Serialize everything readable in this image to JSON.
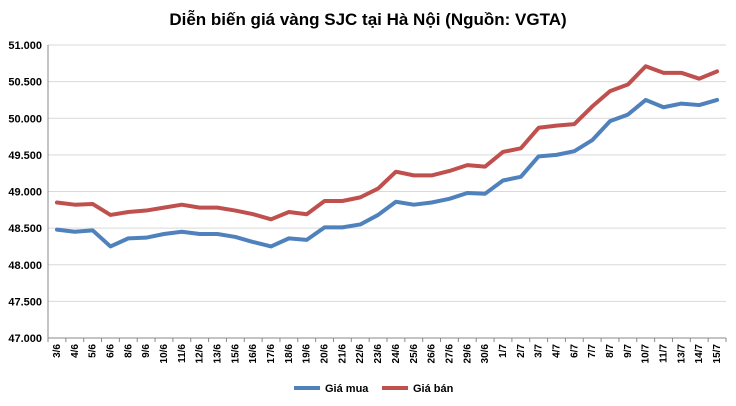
{
  "chart_data": {
    "type": "line",
    "title": "Diễn biến giá vàng SJC tại Hà Nội (Nguồn: VGTA)",
    "xlabel": "",
    "ylabel": "",
    "ylim": [
      47000,
      51000
    ],
    "ytick_step": 500,
    "ytick_labels": [
      "47.000",
      "47.500",
      "48.000",
      "48.500",
      "49.000",
      "49.500",
      "50.000",
      "50.500",
      "51.000"
    ],
    "grid": "horizontal",
    "legend_position": "bottom",
    "categories": [
      "3/6",
      "4/6",
      "5/6",
      "6/6",
      "8/6",
      "9/6",
      "10/6",
      "11/6",
      "12/6",
      "13/6",
      "15/6",
      "16/6",
      "17/6",
      "18/6",
      "19/6",
      "20/6",
      "21/6",
      "22/6",
      "23/6",
      "24/6",
      "25/6",
      "26/6",
      "27/6",
      "29/6",
      "30/6",
      "1/7",
      "2/7",
      "3/7",
      "4/7",
      "6/7",
      "7/7",
      "8/7",
      "9/7",
      "10/7",
      "11/7",
      "13/7",
      "14/7",
      "15/7"
    ],
    "series": [
      {
        "name": "Giá mua",
        "color": "#4f81bd",
        "values": [
          48480,
          48450,
          48470,
          48250,
          48360,
          48370,
          48420,
          48450,
          48420,
          48420,
          48380,
          48310,
          48250,
          48360,
          48340,
          48510,
          48510,
          48550,
          48680,
          48860,
          48820,
          48850,
          48900,
          48980,
          48970,
          49150,
          49200,
          49480,
          49500,
          49550,
          49700,
          49960,
          50050,
          50250,
          50150,
          50200,
          50180,
          50250
        ]
      },
      {
        "name": "Giá bán",
        "color": "#c0504d",
        "values": [
          48850,
          48820,
          48830,
          48680,
          48720,
          48740,
          48780,
          48820,
          48780,
          48780,
          48740,
          48690,
          48620,
          48720,
          48690,
          48870,
          48870,
          48920,
          49040,
          49270,
          49220,
          49220,
          49280,
          49360,
          49340,
          49540,
          49590,
          49870,
          49900,
          49920,
          50160,
          50370,
          50460,
          50710,
          50620,
          50620,
          50540,
          50640
        ]
      }
    ]
  }
}
